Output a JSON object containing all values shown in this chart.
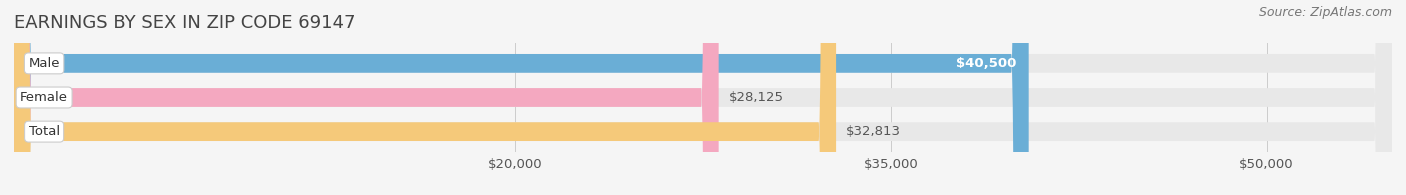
{
  "title": "EARNINGS BY SEX IN ZIP CODE 69147",
  "source": "Source: ZipAtlas.com",
  "categories": [
    "Male",
    "Female",
    "Total"
  ],
  "values": [
    40500,
    28125,
    32813
  ],
  "bar_colors": [
    "#6aaed6",
    "#f4a8c0",
    "#f5c97a"
  ],
  "bar_bg_color": "#e8e8e8",
  "label_bg_color": "#ffffff",
  "x_min": 0,
  "x_max": 55000,
  "x_ticks": [
    20000,
    35000,
    50000
  ],
  "x_tick_labels": [
    "$20,000",
    "$35,000",
    "$50,000"
  ],
  "bar_value_labels": [
    "$40,500",
    "$28,125",
    "$32,813"
  ],
  "title_fontsize": 13,
  "tick_fontsize": 9.5,
  "value_fontsize": 9.5,
  "category_fontsize": 9.5,
  "source_fontsize": 9,
  "fig_bg_color": "#f5f5f5",
  "plot_bg_color": "#f5f5f5"
}
